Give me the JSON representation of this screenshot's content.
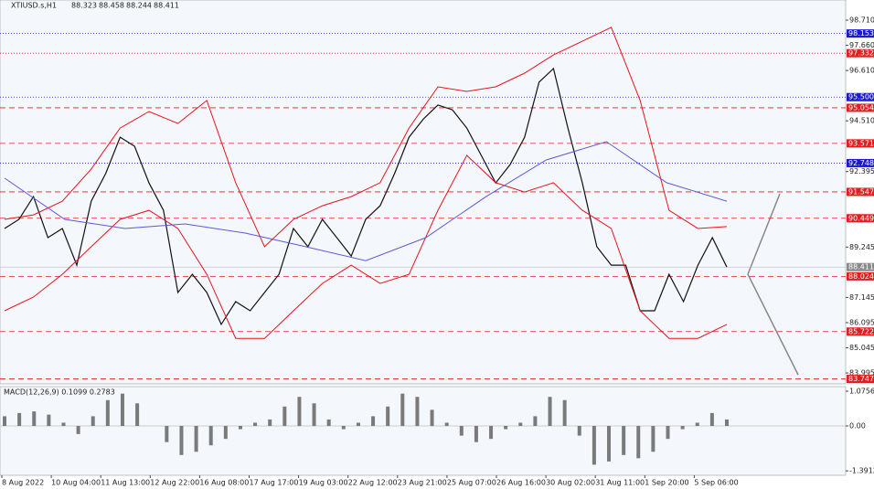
{
  "chart_data": [
    {
      "type": "line",
      "title": "XTIUSD.s,H1",
      "ohlc": [
        "88.323",
        "88.458",
        "88.244",
        "88.411"
      ],
      "ylim": [
        83.54,
        99.55
      ],
      "yticks": [
        {
          "value": 98.71,
          "label": "98.710"
        },
        {
          "value": 97.66,
          "label": "97.660"
        },
        {
          "value": 96.61,
          "label": "96.610"
        },
        {
          "value": 94.51,
          "label": "94.510"
        },
        {
          "value": 92.395,
          "label": "92.395"
        },
        {
          "value": 89.245,
          "label": "89.245"
        },
        {
          "value": 87.145,
          "label": "87.145"
        },
        {
          "value": 86.095,
          "label": "86.095"
        },
        {
          "value": 85.045,
          "label": "85.045"
        },
        {
          "value": 83.995,
          "label": "83.995"
        }
      ],
      "xticks": [
        "8 Aug 2022",
        "10 Aug 04:00",
        "11 Aug 13:00",
        "12 Aug 22:00",
        "16 Aug 08:00",
        "17 Aug 17:00",
        "19 Aug 03:00",
        "22 Aug 12:00",
        "23 Aug 21:00",
        "25 Aug 07:00",
        "26 Aug 16:00",
        "30 Aug 02:00",
        "31 Aug 11:00",
        "1 Sep 20:00",
        "5 Sep 06:00"
      ],
      "levels": [
        {
          "value": 98.153,
          "label": "98.153",
          "color": "#1a1acc",
          "dash": "1,2"
        },
        {
          "value": 97.332,
          "label": "97.332",
          "color": "#e02020",
          "dash": "1,2"
        },
        {
          "value": 95.5,
          "label": "95.500",
          "color": "#1a1acc",
          "dash": "1,2"
        },
        {
          "value": 95.054,
          "label": "95.054",
          "color": "#e02020",
          "dash": "6,4"
        },
        {
          "value": 93.571,
          "label": "93.571",
          "color": "#e02020",
          "dash": "6,4"
        },
        {
          "value": 92.748,
          "label": "92.748",
          "color": "#1a1acc",
          "dash": "1,2"
        },
        {
          "value": 91.547,
          "label": "91.547",
          "color": "#e02020",
          "dash": "6,4"
        },
        {
          "value": 90.449,
          "label": "90.449",
          "color": "#e02020",
          "dash": "6,4"
        },
        {
          "value": 88.024,
          "label": "88.024",
          "color": "#e02020",
          "dash": "6,4"
        },
        {
          "value": 85.722,
          "label": "85.722",
          "color": "#e02020",
          "dash": "6,4"
        },
        {
          "value": 83.747,
          "label": "83.747",
          "color": "#e02020",
          "dash": "6,4"
        }
      ],
      "current": {
        "value": 88.411,
        "label": "88.411",
        "color": "#8a8a8a"
      },
      "series": [
        {
          "name": "Close",
          "color": "#111111",
          "values": [
            90.02,
            90.4,
            91.35,
            89.64,
            90.02,
            88.49,
            91.16,
            92.31,
            93.83,
            93.45,
            91.92,
            90.78,
            87.35,
            88.11,
            87.35,
            86.02,
            86.97,
            86.59,
            87.35,
            88.11,
            90.02,
            89.26,
            90.4,
            89.64,
            88.87,
            90.4,
            90.97,
            92.31,
            93.83,
            94.59,
            95.17,
            94.97,
            94.21,
            93.07,
            91.92,
            92.69,
            93.83,
            96.12,
            96.69,
            94.21,
            91.92,
            89.26,
            88.49,
            88.49,
            86.59,
            86.59,
            88.11,
            86.97,
            88.49,
            89.64,
            88.41
          ]
        },
        {
          "name": "Upper band",
          "color": "#e8141c",
          "values": [
            90.4,
            90.59,
            91.16,
            92.5,
            94.21,
            94.9,
            94.4,
            95.36,
            91.93,
            89.26,
            90.4,
            90.97,
            91.35,
            91.93,
            94.21,
            95.93,
            95.74,
            95.93,
            96.5,
            97.26,
            97.83,
            98.41,
            95.36,
            90.78,
            90.02,
            90.1
          ]
        },
        {
          "name": "Lower band",
          "color": "#e8141c",
          "values": [
            86.59,
            87.16,
            88.11,
            89.26,
            90.4,
            90.78,
            90.02,
            88.11,
            85.44,
            85.44,
            86.59,
            87.73,
            88.49,
            87.73,
            88.11,
            90.78,
            93.07,
            91.93,
            91.54,
            91.93,
            90.78,
            90.02,
            86.59,
            85.44,
            85.44,
            86.02
          ]
        },
        {
          "name": "MA",
          "color": "#5a5ad8",
          "values": [
            92.12,
            90.4,
            90.02,
            90.21,
            89.83,
            89.26,
            88.68,
            89.64,
            91.35,
            92.88,
            93.64,
            91.93,
            91.16
          ]
        }
      ]
    },
    {
      "type": "bar",
      "title": "MACD(12,26,9) 0.1099 0.2783",
      "ylim": [
        -1.528,
        1.217
      ],
      "yticks": [
        {
          "value": 1.0756,
          "label": "1.0756"
        },
        {
          "value": 0,
          "label": "0.00"
        },
        {
          "value": -1.3912,
          "label": "-1.3912"
        }
      ],
      "color": "#7a7a7a",
      "values": [
        0.3,
        0.4,
        0.45,
        0.35,
        0.1,
        -0.25,
        0.3,
        0.8,
        1.0,
        0.7,
        0.0,
        -0.5,
        -0.9,
        -0.8,
        -0.6,
        -0.4,
        -0.1,
        0.1,
        0.2,
        0.6,
        0.9,
        0.7,
        0.2,
        -0.1,
        0.1,
        0.3,
        0.6,
        1.0,
        0.9,
        0.5,
        0.1,
        -0.3,
        -0.5,
        -0.4,
        -0.1,
        0.1,
        0.3,
        0.9,
        0.8,
        -0.3,
        -1.2,
        -1.1,
        -0.9,
        -1.0,
        -0.8,
        -0.4,
        -0.1,
        0.1,
        0.4,
        0.2
      ]
    }
  ]
}
